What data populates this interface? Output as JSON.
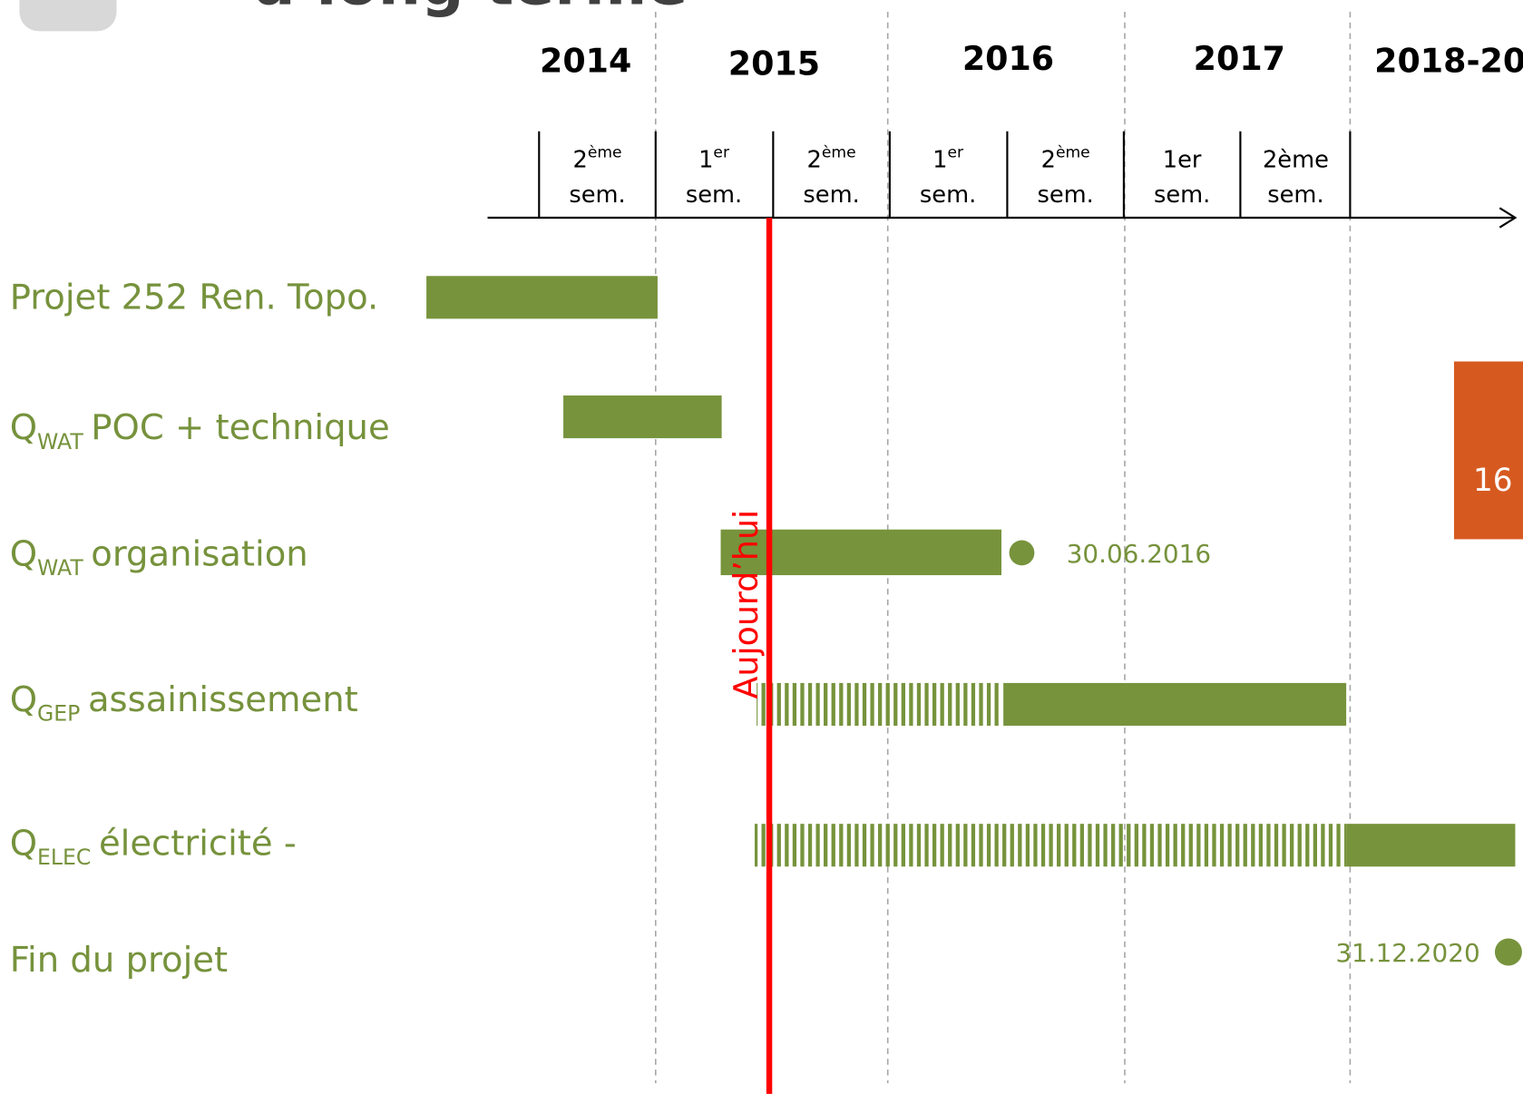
{
  "title": "à long terme",
  "years": [
    "2014",
    "2015",
    "2016",
    "2017",
    "2018-20"
  ],
  "semesters": [
    {
      "num": "2",
      "sup": "ème",
      "unit": "sem."
    },
    {
      "num": "1",
      "sup": "er",
      "unit": "sem."
    },
    {
      "num": "2",
      "sup": "ème",
      "unit": "sem."
    },
    {
      "num": "1",
      "sup": "er",
      "unit": "sem."
    },
    {
      "num": "2",
      "sup": "ème",
      "unit": "sem."
    },
    {
      "num": "1er",
      "unit": "sem."
    },
    {
      "num": "2ème",
      "unit": "sem."
    }
  ],
  "rows": [
    {
      "label": "Projet 252 Ren. Topo."
    },
    {
      "q": "Q",
      "sub": "WAT",
      "label": "POC + technique"
    },
    {
      "q": "Q",
      "sub": "WAT",
      "label": "organisation"
    },
    {
      "q": "Q",
      "sub": "GEP",
      "label": "assainissement"
    },
    {
      "q": "Q",
      "sub": "ELEC",
      "label": "électricité -"
    },
    {
      "label": "Fin du projet"
    }
  ],
  "milestones": [
    "30.06.2016",
    "31.12.2020"
  ],
  "today": "Aujourd’hui",
  "page_number": "16"
}
